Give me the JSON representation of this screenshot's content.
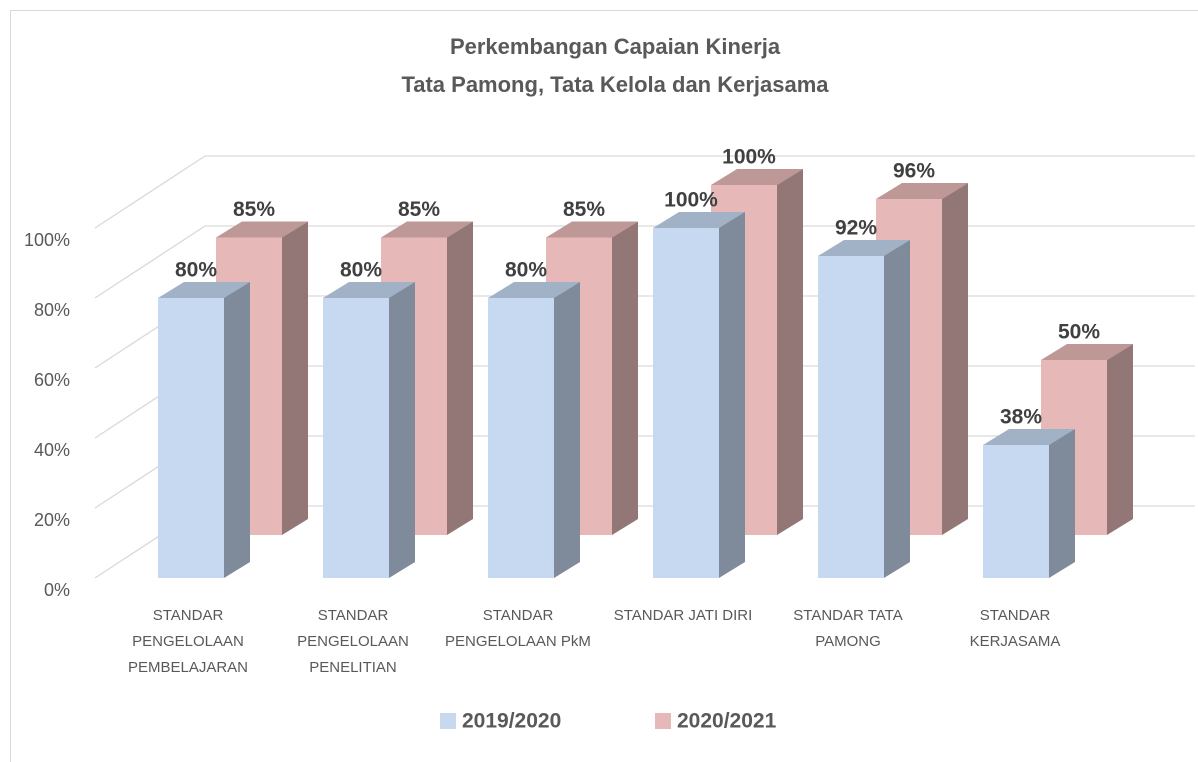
{
  "chart_data": {
    "type": "bar3d",
    "title": [
      "Perkembangan Capaian Kinerja",
      "Tata Pamong, Tata Kelola dan Kerjasama"
    ],
    "categories": [
      "STANDAR PENGELOLAAN PEMBELAJARAN",
      "STANDAR PENGELOLAAN PENELITIAN",
      "STANDAR PENGELOLAAN PkM",
      "STANDAR JATI DIRI",
      "STANDAR TATA PAMONG",
      "STANDAR KERJASAMA"
    ],
    "series": [
      {
        "name": "2019/2020",
        "color": "#c6d9f1",
        "values": [
          80,
          80,
          80,
          100,
          92,
          38
        ],
        "value_labels": [
          "80%",
          "80%",
          "80%",
          "100%",
          "92%",
          "38%"
        ]
      },
      {
        "name": "2020/2021",
        "color": "#e6b9b8",
        "values": [
          85,
          85,
          85,
          100,
          96,
          50
        ],
        "value_labels": [
          "85%",
          "85%",
          "85%",
          "100%",
          "96%",
          "50%"
        ]
      }
    ],
    "ylim": [
      0,
      100
    ],
    "yticks": [
      {
        "value": 0,
        "label": "0%"
      },
      {
        "value": 20,
        "label": "20%"
      },
      {
        "value": 40,
        "label": "40%"
      },
      {
        "value": 60,
        "label": "60%"
      },
      {
        "value": 80,
        "label": "80%"
      },
      {
        "value": 100,
        "label": "100%"
      }
    ],
    "grid": true,
    "legend": "bottom"
  }
}
